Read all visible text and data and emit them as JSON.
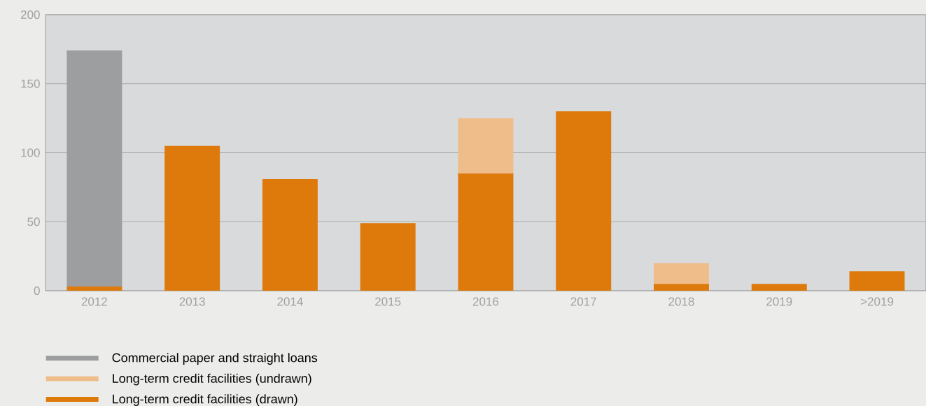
{
  "chart_data": {
    "type": "bar",
    "stacked": true,
    "categories": [
      "2012",
      "2013",
      "2014",
      "2015",
      "2016",
      "2017",
      "2018",
      "2019",
      ">2019"
    ],
    "series": [
      {
        "name": "Long-term credit facilities (drawn)",
        "color": "#de7a0c",
        "values": [
          3,
          105,
          81,
          49,
          85,
          130,
          5,
          5,
          14
        ]
      },
      {
        "name": "Long-term credit facilities (undrawn)",
        "color": "#efbd89",
        "values": [
          0,
          0,
          0,
          0,
          40,
          0,
          15,
          0,
          0
        ]
      },
      {
        "name": "Commercial paper and straight loans",
        "color": "#9d9e9f",
        "values": [
          171,
          0,
          0,
          0,
          0,
          0,
          0,
          0,
          0
        ]
      }
    ],
    "ylim": [
      0,
      200
    ],
    "yticks": [
      0,
      50,
      100,
      150,
      200
    ],
    "grid": "y",
    "legend": "bottom"
  }
}
